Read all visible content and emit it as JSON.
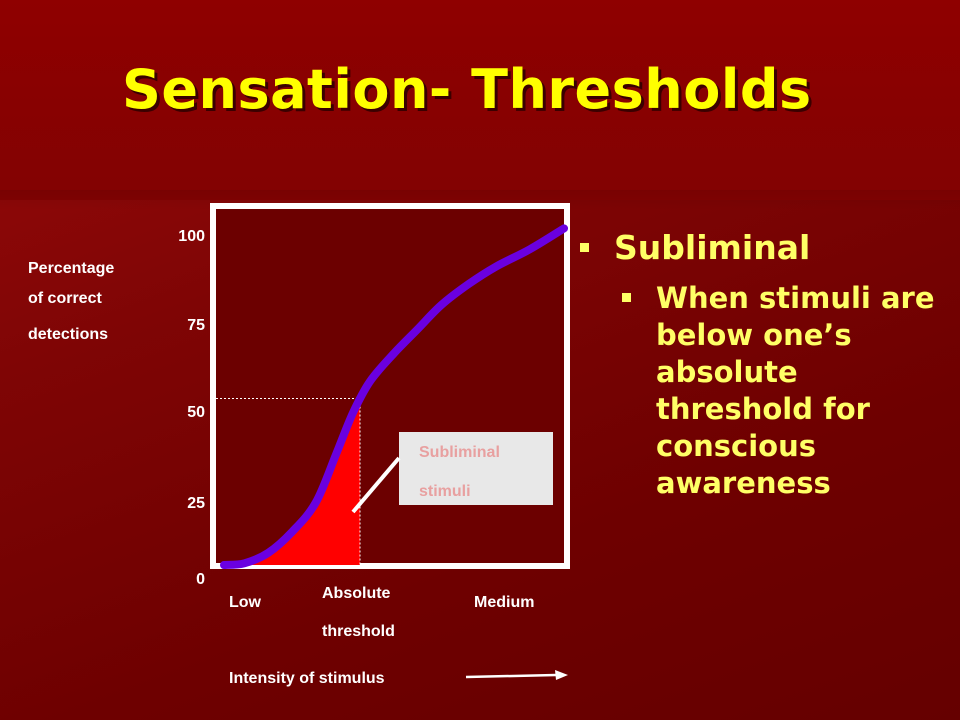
{
  "slide": {
    "title": "Sensation- Thresholds",
    "bullets": {
      "main": "Subliminal",
      "sub": "When stimuli are below one’s absolute threshold for conscious awareness"
    }
  },
  "chart_data": {
    "type": "line",
    "ylabel": [
      "Percentage",
      "of correct",
      "detections"
    ],
    "yticks": [
      0,
      25,
      50,
      75,
      100
    ],
    "ylim": [
      0,
      100
    ],
    "xlim": [
      0,
      1
    ],
    "x_tick_labels": [
      {
        "text": "Low",
        "x": 0.02
      },
      {
        "text": [
          "Absolute",
          "threshold"
        ],
        "x": 0.4
      },
      {
        "text": "Medium",
        "x": 0.88
      }
    ],
    "xlabel": "Intensity of stimulus",
    "series": [
      {
        "x": [
          0,
          0.06,
          0.13,
          0.2,
          0.27,
          0.33,
          0.38,
          0.43,
          0.5,
          0.57,
          0.64,
          0.72,
          0.8,
          0.9,
          1.0
        ],
        "y": [
          0,
          0.5,
          3.5,
          9.5,
          18,
          32,
          44,
          53,
          61,
          68,
          75,
          81,
          86,
          91,
          97
        ]
      }
    ],
    "threshold": {
      "x": 0.4,
      "y": 48
    },
    "annotation": [
      "Subliminal",
      "stimuli"
    ],
    "colors": {
      "curve": "#6a00e0",
      "shade": "#ff0000",
      "frame": "#ffffff",
      "plot_bg": "#6c0000",
      "callout_bg": "#e8e8e8",
      "callout_text": "#e8a0a0"
    }
  }
}
